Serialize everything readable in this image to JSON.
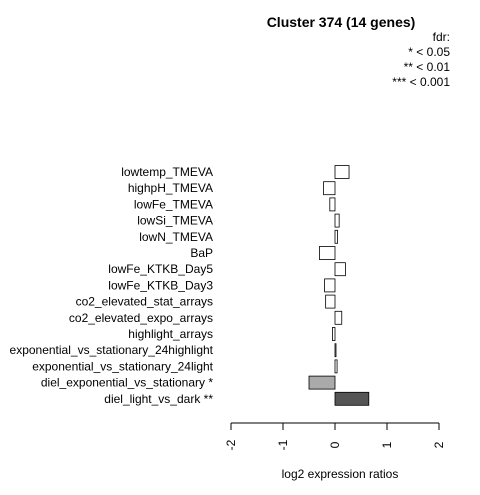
{
  "chart_data": {
    "type": "bar",
    "orientation": "horizontal",
    "title": "Cluster 374 (14 genes)",
    "xlabel": "log2 expression ratios",
    "ylabel": "",
    "xlim": [
      -2,
      2
    ],
    "xticks": [
      "-2",
      "-1",
      "0",
      "1",
      "2"
    ],
    "legend": {
      "title": "fdr:",
      "entries": [
        "* < 0.05",
        "** < 0.01",
        "*** < 0.001"
      ],
      "position": "top-right"
    },
    "categories": [
      "lowtemp_TMEVA",
      "highpH_TMEVA",
      "lowFe_TMEVA",
      "lowSi_TMEVA",
      "lowN_TMEVA",
      "BaP",
      "lowFe_KTKB_Day5",
      "lowFe_KTKB_Day3",
      "co2_elevated_stat_arrays",
      "co2_elevated_expo_arrays",
      "highlight_arrays",
      "exponential_vs_stationary_24highlight",
      "exponential_vs_stationary_24light",
      "diel_exponential_vs_stationary *",
      "diel_light_vs_dark **"
    ],
    "values": [
      0.27,
      -0.22,
      -0.1,
      0.08,
      0.05,
      -0.3,
      0.2,
      -0.2,
      -0.18,
      0.13,
      -0.05,
      0.01,
      0.04,
      -0.5,
      0.65
    ],
    "bar_colors": [
      "#ffffff",
      "#ffffff",
      "#ffffff",
      "#ffffff",
      "#ffffff",
      "#ffffff",
      "#ffffff",
      "#ffffff",
      "#ffffff",
      "#ffffff",
      "#ffffff",
      "#ffffff",
      "#ffffff",
      "#aaaaaa",
      "#555555"
    ]
  }
}
